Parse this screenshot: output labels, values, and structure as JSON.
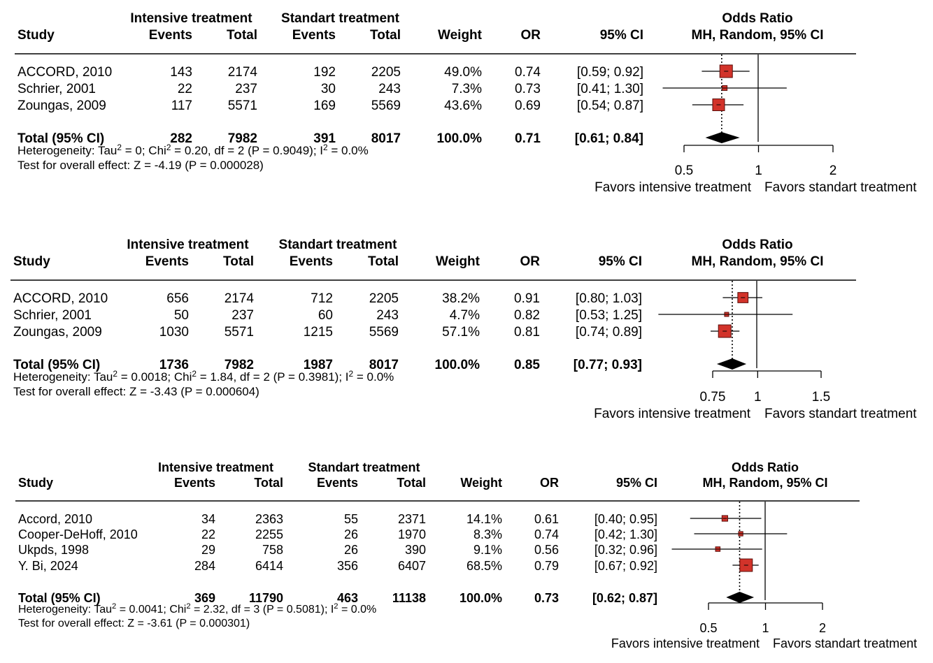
{
  "chart_data": [
    {
      "type": "forest",
      "headers": {
        "study": "Study",
        "group1": "Intensive treatment",
        "group2": "Standart treatment",
        "events": "Events",
        "total": "Total",
        "weight": "Weight",
        "or": "OR",
        "ci": "95% CI",
        "plot_title": "Odds Ratio",
        "plot_subtitle": "MH, Random, 95% CI"
      },
      "studies": [
        {
          "name": "ACCORD, 2010",
          "e1": "143",
          "n1": "2174",
          "e2": "192",
          "n2": "2205",
          "weight_label": "49.0%",
          "or_label": "0.74",
          "ci_label": "[0.59; 0.92]",
          "weight": 49.0,
          "or": 0.74,
          "lo": 0.59,
          "hi": 0.92
        },
        {
          "name": "Schrier, 2001",
          "e1": "22",
          "n1": "237",
          "e2": "30",
          "n2": "243",
          "weight_label": "7.3%",
          "or_label": "0.73",
          "ci_label": "[0.41; 1.30]",
          "weight": 7.3,
          "or": 0.73,
          "lo": 0.41,
          "hi": 1.3
        },
        {
          "name": "Zoungas, 2009",
          "e1": "117",
          "n1": "5571",
          "e2": "169",
          "n2": "5569",
          "weight_label": "43.6%",
          "or_label": "0.69",
          "ci_label": "[0.54; 0.87]",
          "weight": 43.6,
          "or": 0.69,
          "lo": 0.54,
          "hi": 0.87
        }
      ],
      "total": {
        "name": "Total (95% CI)",
        "e1": "282",
        "n1": "7982",
        "e2": "391",
        "n2": "8017",
        "weight_label": "100.0%",
        "or_label": "0.71",
        "ci_label": "[0.61; 0.84]",
        "or": 0.71,
        "lo": 0.61,
        "hi": 0.84
      },
      "heterogeneity": {
        "prefix": "Heterogeneity: Tau",
        "tau": " = 0; Chi",
        "chi": " = 0.20, df = 2 (P = 0.9049); I",
        "i2": " = 0.0%"
      },
      "overall": "Test for overall effect: Z = -4.19 (P = 0.000028)",
      "axis": {
        "scale": "log",
        "ticks": [
          {
            "v": 0.5,
            "label": "0.5"
          },
          {
            "v": 1,
            "label": "1"
          },
          {
            "v": 2,
            "label": "2"
          }
        ]
      },
      "favors_left": "Favors intensive treatment",
      "favors_right": "Favors standart treatment",
      "colors": {
        "box": "#d2332a",
        "diamond": "#000000"
      }
    },
    {
      "type": "forest",
      "headers": {
        "study": "Study",
        "group1": "Intensive treatment",
        "group2": "Standart treatment",
        "events": "Events",
        "total": "Total",
        "weight": "Weight",
        "or": "OR",
        "ci": "95% CI",
        "plot_title": "Odds Ratio",
        "plot_subtitle": "MH, Random, 95% CI"
      },
      "studies": [
        {
          "name": "ACCORD, 2010",
          "e1": "656",
          "n1": "2174",
          "e2": "712",
          "n2": "2205",
          "weight_label": "38.2%",
          "or_label": "0.91",
          "ci_label": "[0.80; 1.03]",
          "weight": 38.2,
          "or": 0.91,
          "lo": 0.8,
          "hi": 1.03
        },
        {
          "name": "Schrier, 2001",
          "e1": "50",
          "n1": "237",
          "e2": "60",
          "n2": "243",
          "weight_label": "4.7%",
          "or_label": "0.82",
          "ci_label": "[0.53; 1.25]",
          "weight": 4.7,
          "or": 0.82,
          "lo": 0.53,
          "hi": 1.25
        },
        {
          "name": "Zoungas, 2009",
          "e1": "1030",
          "n1": "5571",
          "e2": "1215",
          "n2": "5569",
          "weight_label": "57.1%",
          "or_label": "0.81",
          "ci_label": "[0.74; 0.89]",
          "weight": 57.1,
          "or": 0.81,
          "lo": 0.74,
          "hi": 0.89
        }
      ],
      "total": {
        "name": "Total (95% CI)",
        "e1": "1736",
        "n1": "7982",
        "e2": "1987",
        "n2": "8017",
        "weight_label": "100.0%",
        "or_label": "0.85",
        "ci_label": "[0.77; 0.93]",
        "or": 0.85,
        "lo": 0.77,
        "hi": 0.93
      },
      "heterogeneity": {
        "prefix": "Heterogeneity: Tau",
        "tau": " = 0.0018; Chi",
        "chi": " = 1.84, df = 2 (P = 0.3981); I",
        "i2": " = 0.0%"
      },
      "overall": "Test for overall effect: Z = -3.43 (P = 0.000604)",
      "axis": {
        "scale": "log",
        "ticks": [
          {
            "v": 0.75,
            "label": "0.75"
          },
          {
            "v": 1,
            "label": "1"
          },
          {
            "v": 1.5,
            "label": "1.5"
          }
        ]
      },
      "favors_left": "Favors intensive treatment",
      "favors_right": "Favors standart treatment",
      "colors": {
        "box": "#d2332a",
        "diamond": "#000000"
      }
    },
    {
      "type": "forest",
      "headers": {
        "study": "Study",
        "group1": "Intensive treatment",
        "group2": "Standart treatment",
        "events": "Events",
        "total": "Total",
        "weight": "Weight",
        "or": "OR",
        "ci": "95% CI",
        "plot_title": "Odds Ratio",
        "plot_subtitle": "MH, Random, 95% CI"
      },
      "studies": [
        {
          "name": "Accord, 2010",
          "e1": "34",
          "n1": "2363",
          "e2": "55",
          "n2": "2371",
          "weight_label": "14.1%",
          "or_label": "0.61",
          "ci_label": "[0.40; 0.95]",
          "weight": 14.1,
          "or": 0.61,
          "lo": 0.4,
          "hi": 0.95
        },
        {
          "name": "Cooper-DeHoff, 2010",
          "e1": "22",
          "n1": "2255",
          "e2": "26",
          "n2": "1970",
          "weight_label": "8.3%",
          "or_label": "0.74",
          "ci_label": "[0.42; 1.30]",
          "weight": 8.3,
          "or": 0.74,
          "lo": 0.42,
          "hi": 1.3
        },
        {
          "name": "Ukpds, 1998",
          "e1": "29",
          "n1": "758",
          "e2": "26",
          "n2": "390",
          "weight_label": "9.1%",
          "or_label": "0.56",
          "ci_label": "[0.32; 0.96]",
          "weight": 9.1,
          "or": 0.56,
          "lo": 0.32,
          "hi": 0.96
        },
        {
          "name": "Y. Bi, 2024",
          "e1": "284",
          "n1": "6414",
          "e2": "356",
          "n2": "6407",
          "weight_label": "68.5%",
          "or_label": "0.79",
          "ci_label": "[0.67; 0.92]",
          "weight": 68.5,
          "or": 0.79,
          "lo": 0.67,
          "hi": 0.92
        }
      ],
      "total": {
        "name": "Total (95% CI)",
        "e1": "369",
        "n1": "11790",
        "e2": "463",
        "n2": "11138",
        "weight_label": "100.0%",
        "or_label": "0.73",
        "ci_label": "[0.62; 0.87]",
        "or": 0.73,
        "lo": 0.62,
        "hi": 0.87
      },
      "heterogeneity": {
        "prefix": "Heterogeneity: Tau",
        "tau": " = 0.0041; Chi",
        "chi": " = 2.32, df = 3 (P = 0.5081); I",
        "i2": " = 0.0%"
      },
      "overall": "Test for overall effect: Z = -3.61 (P = 0.000301)",
      "axis": {
        "scale": "log",
        "ticks": [
          {
            "v": 0.5,
            "label": "0.5"
          },
          {
            "v": 1,
            "label": "1"
          },
          {
            "v": 2,
            "label": "2"
          }
        ]
      },
      "favors_left": "Favors intensive treatment",
      "favors_right": "Favors standart treatment",
      "colors": {
        "box": "#d2332a",
        "diamond": "#000000"
      }
    }
  ]
}
